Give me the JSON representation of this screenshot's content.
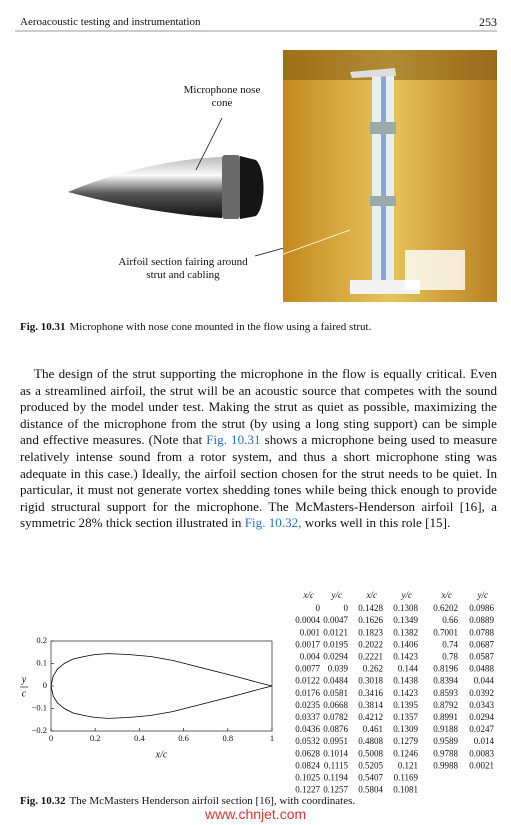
{
  "header": {
    "title": "Aeroacoustic testing and instrumentation",
    "page": "253"
  },
  "figure1": {
    "label_nose": [
      "Microphone nose",
      "cone"
    ],
    "label_fairing": [
      "Airfoil section fairing around",
      "strut and cabling"
    ],
    "caption": {
      "label": "Fig. 10.31",
      "text": "Microphone with nose cone mounted in the flow using a faired strut."
    }
  },
  "paragraph": [
    "The design of the strut supporting the microphone in the flow is equally critical. Even as a streamlined airfoil, the strut will be an acoustic source that competes with the sound produced by the model under test. Making the strut as quiet as possible, maximizing the distance of the microphone from the strut (by using a long sting support) can be simple and effective measures. (Note that ",
    "Fig. 10.31",
    " shows a microphone being used to measure relatively intense sound from a rotor system, and thus a short microphone sting was adequate in this case.) Ideally, the airfoil section chosen for the strut needs to be quiet. In particular, it must not generate vortex shedding tones while being thick enough to provide rigid structural support for the microphone. The McMasters-Henderson airfoil [16], a symmetric 28% thick section illustrated in ",
    "Fig. 10.32,",
    " works well in this role [15]."
  ],
  "chart_data": {
    "type": "line",
    "xlabel": "x/c",
    "ylabel": [
      "y",
      "c"
    ],
    "x": [
      0,
      0.01,
      0.03,
      0.06,
      0.1,
      0.15,
      0.2,
      0.26,
      0.35,
      0.45,
      0.55,
      0.65,
      0.75,
      0.85,
      0.95,
      1
    ],
    "series": [
      {
        "color": "#000000",
        "values": [
          0,
          0.045,
          0.076,
          0.1,
          0.12,
          0.131,
          0.14,
          0.144,
          0.14,
          0.131,
          0.114,
          0.089,
          0.064,
          0.039,
          0.012,
          0
        ]
      },
      {
        "color": "#000000",
        "values": [
          0,
          -0.045,
          -0.076,
          -0.1,
          -0.12,
          -0.131,
          -0.14,
          -0.144,
          -0.14,
          -0.131,
          -0.114,
          -0.089,
          -0.064,
          -0.039,
          -0.012,
          0
        ]
      }
    ],
    "xlim": [
      0,
      1
    ],
    "ylim": [
      -0.2,
      0.2
    ],
    "xticks": [
      0,
      0.2,
      0.4,
      0.6,
      0.8,
      1
    ],
    "yticks": [
      {
        "value": -0.2,
        "label": "−0.2"
      },
      {
        "value": -0.1,
        "label": "−0.1"
      },
      0,
      0.1,
      0.2
    ]
  },
  "table": {
    "header": [
      "x/c",
      "y/c"
    ],
    "groups": [
      [
        [
          "0",
          "0"
        ],
        [
          "0.0004",
          "0.0047"
        ],
        [
          "0.001",
          "0.0121"
        ],
        [
          "0.0017",
          "0.0195"
        ],
        [
          "0.004",
          "0.0294"
        ],
        [
          "0.0077",
          "0.039"
        ],
        [
          "0.0122",
          "0.0484"
        ],
        [
          "0.0176",
          "0.0581"
        ],
        [
          "0.0235",
          "0.0668"
        ],
        [
          "0.0337",
          "0.0782"
        ],
        [
          "0.0436",
          "0.0876"
        ],
        [
          "0.0532",
          "0.0951"
        ],
        [
          "0.0628",
          "0.1014"
        ],
        [
          "0.0824",
          "0.1115"
        ],
        [
          "0.1025",
          "0.1194"
        ],
        [
          "0.1227",
          "0.1257"
        ]
      ],
      [
        [
          "0.1428",
          "0.1308"
        ],
        [
          "0.1626",
          "0.1349"
        ],
        [
          "0.1823",
          "0.1382"
        ],
        [
          "0.2022",
          "0.1406"
        ],
        [
          "0.2221",
          "0.1423"
        ],
        [
          "0.262",
          "0.144"
        ],
        [
          "0.3018",
          "0.1438"
        ],
        [
          "0.3416",
          "0.1423"
        ],
        [
          "0.3814",
          "0.1395"
        ],
        [
          "0.4212",
          "0.1357"
        ],
        [
          "0.461",
          "0.1309"
        ],
        [
          "0.4808",
          "0.1279"
        ],
        [
          "0.5008",
          "0.1246"
        ],
        [
          "0.5205",
          "0.121"
        ],
        [
          "0.5407",
          "0.1169"
        ],
        [
          "0.5804",
          "0.1081"
        ]
      ],
      [
        [
          "0.6202",
          "0.0986"
        ],
        [
          "0.66",
          "0.0889"
        ],
        [
          "0.7001",
          "0.0788"
        ],
        [
          "0.74",
          "0.0687"
        ],
        [
          "0.78",
          "0.0587"
        ],
        [
          "0.8196",
          "0.0488"
        ],
        [
          "0.8394",
          "0.044"
        ],
        [
          "0.8593",
          "0.0392"
        ],
        [
          "0.8792",
          "0.0343"
        ],
        [
          "0.8991",
          "0.0294"
        ],
        [
          "0.9188",
          "0.0247"
        ],
        [
          "0.9589",
          "0.014"
        ],
        [
          "0.9788",
          "0.0083"
        ],
        [
          "0.9988",
          "0.0021"
        ]
      ]
    ]
  },
  "figure2": {
    "caption": {
      "label": "Fig. 10.32",
      "text": "The McMasters Henderson airfoil section [16], with coordinates."
    }
  },
  "watermark": "www.chnjet.com"
}
